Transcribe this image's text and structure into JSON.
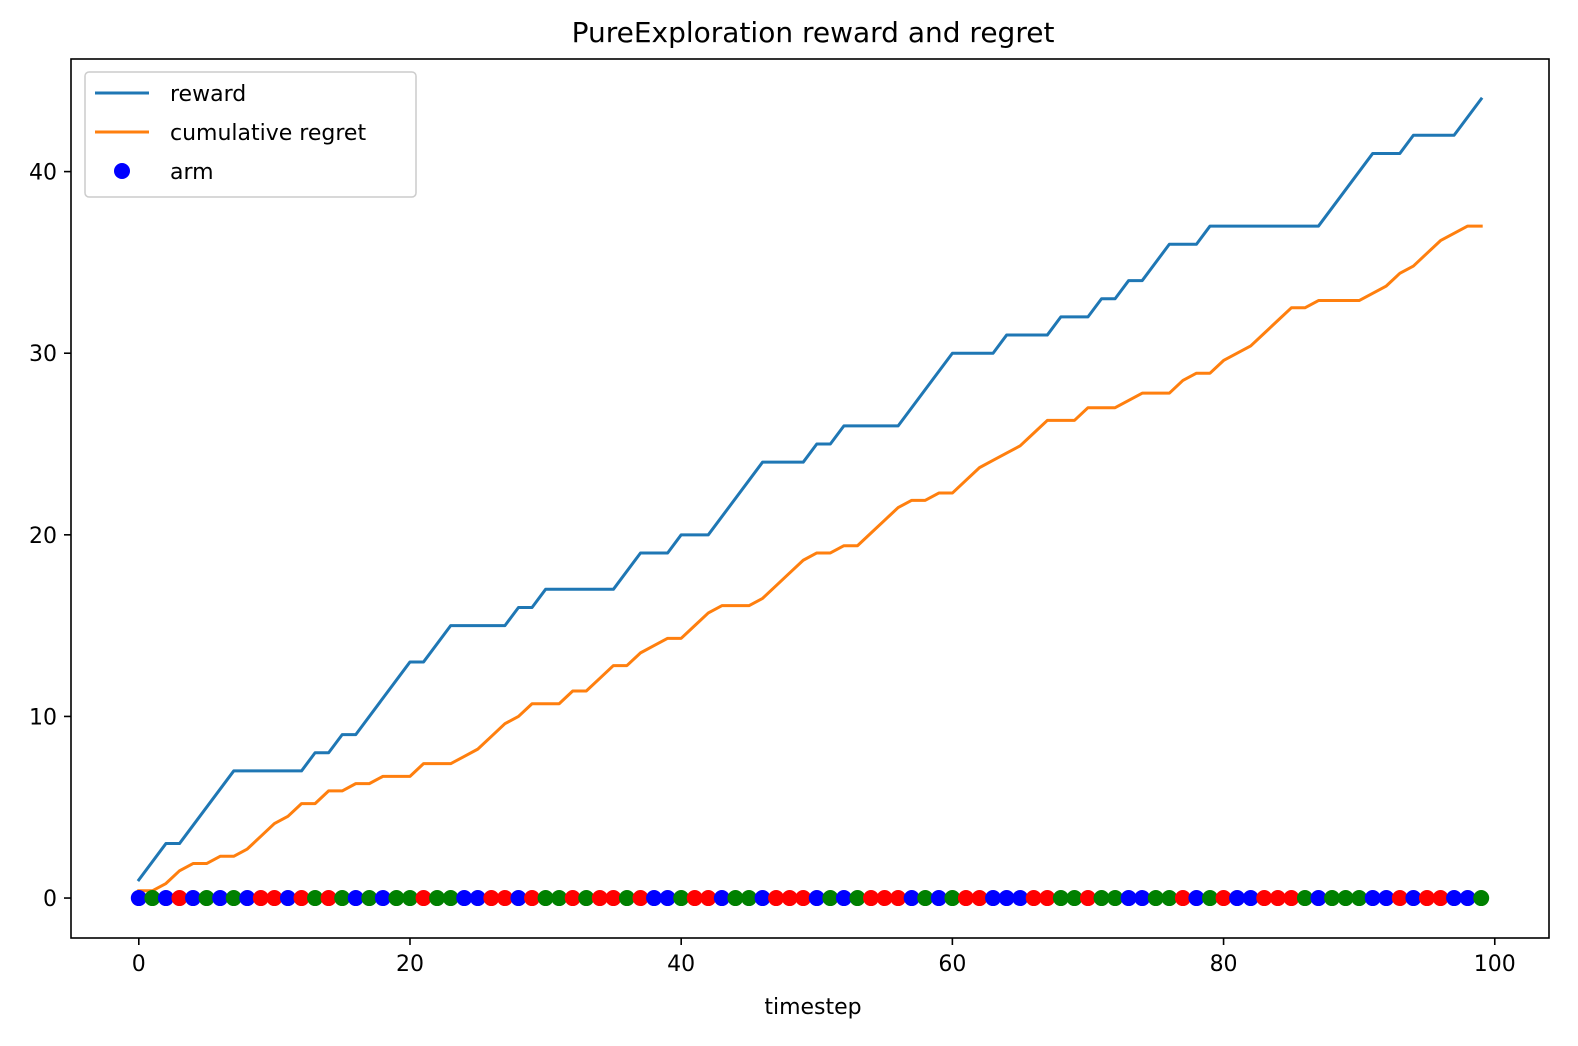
{
  "chart_data": {
    "type": "line",
    "title": "PureExploration reward and regret",
    "xlabel": "timestep",
    "ylabel": "",
    "xlim": [
      -5,
      104
    ],
    "ylim": [
      -2.2,
      46.2
    ],
    "x_ticks": [
      0,
      20,
      40,
      60,
      80,
      100
    ],
    "y_ticks": [
      0,
      10,
      20,
      30,
      40
    ],
    "grid": false,
    "legend_position": "upper-left",
    "series": [
      {
        "name": "reward",
        "type": "line",
        "color": "#1f77b4",
        "x": [
          0,
          2,
          3,
          7,
          12,
          13,
          14,
          15,
          16,
          20,
          21,
          23,
          27,
          28,
          29,
          30,
          35,
          37,
          39,
          40,
          42,
          46,
          49,
          50,
          51,
          52,
          56,
          60,
          63,
          64,
          67,
          68,
          70,
          71,
          72,
          73,
          74,
          76,
          78,
          79,
          87,
          91,
          93,
          94,
          97,
          99
        ],
        "y": [
          1,
          3,
          3,
          7,
          7,
          8,
          8,
          9,
          9,
          13,
          13,
          15,
          15,
          16,
          16,
          17,
          17,
          19,
          19,
          20,
          20,
          24,
          24,
          25,
          25,
          26,
          26,
          30,
          30,
          31,
          31,
          32,
          32,
          33,
          33,
          34,
          34,
          36,
          36,
          37,
          37,
          41,
          41,
          42,
          42,
          44
        ]
      },
      {
        "name": "cumulative regret",
        "type": "line",
        "color": "#ff7f0e",
        "x": [
          0,
          1,
          2,
          3,
          4,
          5,
          6,
          7,
          8,
          9,
          10,
          11,
          12,
          13,
          14,
          15,
          16,
          17,
          18,
          19,
          20,
          21,
          22,
          23,
          24,
          25,
          26,
          27,
          28,
          29,
          30,
          31,
          32,
          33,
          34,
          35,
          36,
          37,
          38,
          39,
          40,
          41,
          42,
          43,
          44,
          45,
          46,
          47,
          48,
          49,
          50,
          51,
          52,
          53,
          54,
          55,
          56,
          57,
          58,
          59,
          60,
          61,
          62,
          63,
          64,
          65,
          66,
          67,
          68,
          69,
          70,
          71,
          72,
          73,
          74,
          75,
          76,
          77,
          78,
          79,
          80,
          81,
          82,
          83,
          84,
          85,
          86,
          87,
          88,
          89,
          90,
          91,
          92,
          93,
          94,
          95,
          96,
          97,
          98,
          99
        ],
        "y": [
          0.4,
          0.4,
          0.8,
          1.5,
          1.9,
          1.9,
          2.3,
          2.3,
          2.7,
          3.4,
          4.1,
          4.5,
          5.2,
          5.2,
          5.9,
          5.9,
          6.3,
          6.3,
          6.7,
          6.7,
          6.7,
          7.4,
          7.4,
          7.4,
          7.8,
          8.2,
          8.9,
          9.6,
          10.0,
          10.7,
          10.7,
          10.7,
          11.4,
          11.4,
          12.1,
          12.8,
          12.8,
          13.5,
          13.9,
          14.3,
          14.3,
          15.0,
          15.7,
          16.1,
          16.1,
          16.1,
          16.5,
          17.2,
          17.9,
          18.6,
          19.0,
          19.0,
          19.4,
          19.4,
          20.1,
          20.8,
          21.5,
          21.9,
          21.9,
          22.3,
          22.3,
          23.0,
          23.7,
          24.1,
          24.5,
          24.9,
          25.6,
          26.3,
          26.3,
          26.3,
          27.0,
          27.0,
          27.0,
          27.4,
          27.8,
          27.8,
          27.8,
          28.5,
          28.9,
          28.9,
          29.6,
          30.0,
          30.4,
          31.1,
          31.8,
          32.5,
          32.5,
          32.9,
          32.9,
          32.9,
          32.9,
          33.3,
          33.7,
          34.4,
          34.8,
          35.5,
          36.2,
          36.6,
          37.0,
          37.0
        ]
      },
      {
        "name": "arm",
        "type": "scatter",
        "color": "#0000ff",
        "legend_marker_color": "#0000ff",
        "x": [
          0,
          1,
          2,
          3,
          4,
          5,
          6,
          7,
          8,
          9,
          10,
          11,
          12,
          13,
          14,
          15,
          16,
          17,
          18,
          19,
          20,
          21,
          22,
          23,
          24,
          25,
          26,
          27,
          28,
          29,
          30,
          31,
          32,
          33,
          34,
          35,
          36,
          37,
          38,
          39,
          40,
          41,
          42,
          43,
          44,
          45,
          46,
          47,
          48,
          49,
          50,
          51,
          52,
          53,
          54,
          55,
          56,
          57,
          58,
          59,
          60,
          61,
          62,
          63,
          64,
          65,
          66,
          67,
          68,
          69,
          70,
          71,
          72,
          73,
          74,
          75,
          76,
          77,
          78,
          79,
          80,
          81,
          82,
          83,
          84,
          85,
          86,
          87,
          88,
          89,
          90,
          91,
          92,
          93,
          94,
          95,
          96,
          97,
          98,
          99
        ],
        "y": [
          0,
          0,
          0,
          0,
          0,
          0,
          0,
          0,
          0,
          0,
          0,
          0,
          0,
          0,
          0,
          0,
          0,
          0,
          0,
          0,
          0,
          0,
          0,
          0,
          0,
          0,
          0,
          0,
          0,
          0,
          0,
          0,
          0,
          0,
          0,
          0,
          0,
          0,
          0,
          0,
          0,
          0,
          0,
          0,
          0,
          0,
          0,
          0,
          0,
          0,
          0,
          0,
          0,
          0,
          0,
          0,
          0,
          0,
          0,
          0,
          0,
          0,
          0,
          0,
          0,
          0,
          0,
          0,
          0,
          0,
          0,
          0,
          0,
          0,
          0,
          0,
          0,
          0,
          0,
          0,
          0,
          0,
          0,
          0,
          0,
          0,
          0,
          0,
          0,
          0,
          0,
          0,
          0,
          0,
          0,
          0,
          0,
          0,
          0,
          0
        ],
        "point_colors": [
          "#0000ff",
          "#008000",
          "#0000ff",
          "#ff0000",
          "#0000ff",
          "#008000",
          "#0000ff",
          "#008000",
          "#0000ff",
          "#ff0000",
          "#ff0000",
          "#0000ff",
          "#ff0000",
          "#008000",
          "#ff0000",
          "#008000",
          "#0000ff",
          "#008000",
          "#0000ff",
          "#008000",
          "#008000",
          "#ff0000",
          "#008000",
          "#008000",
          "#0000ff",
          "#0000ff",
          "#ff0000",
          "#ff0000",
          "#0000ff",
          "#ff0000",
          "#008000",
          "#008000",
          "#ff0000",
          "#008000",
          "#ff0000",
          "#ff0000",
          "#008000",
          "#ff0000",
          "#0000ff",
          "#0000ff",
          "#008000",
          "#ff0000",
          "#ff0000",
          "#0000ff",
          "#008000",
          "#008000",
          "#0000ff",
          "#ff0000",
          "#ff0000",
          "#ff0000",
          "#0000ff",
          "#008000",
          "#0000ff",
          "#008000",
          "#ff0000",
          "#ff0000",
          "#ff0000",
          "#0000ff",
          "#008000",
          "#0000ff",
          "#008000",
          "#ff0000",
          "#ff0000",
          "#0000ff",
          "#0000ff",
          "#0000ff",
          "#ff0000",
          "#ff0000",
          "#008000",
          "#008000",
          "#ff0000",
          "#008000",
          "#008000",
          "#0000ff",
          "#0000ff",
          "#008000",
          "#008000",
          "#ff0000",
          "#0000ff",
          "#008000",
          "#ff0000",
          "#0000ff",
          "#0000ff",
          "#ff0000",
          "#ff0000",
          "#ff0000",
          "#008000",
          "#0000ff",
          "#008000",
          "#008000",
          "#008000",
          "#0000ff",
          "#0000ff",
          "#ff0000",
          "#0000ff",
          "#ff0000",
          "#ff0000",
          "#0000ff",
          "#0000ff",
          "#008000"
        ]
      }
    ]
  }
}
